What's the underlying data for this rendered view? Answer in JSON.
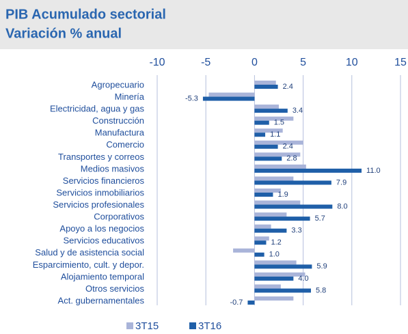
{
  "chart_data": {
    "type": "bar",
    "orientation": "horizontal",
    "title": "PIB Acumulado sectorial",
    "subtitle": "Variación % anual",
    "categories": [
      "Agropecuario",
      "Minería",
      "Electricidad, agua y gas",
      "Construcción",
      "Manufactura",
      "Comercio",
      "Transportes y correos",
      "Medios masivos",
      "Servicios financieros",
      "Servicios inmobiliarios",
      "Servicios profesionales",
      "Corporativos",
      "Apoyo a los negocios",
      "Servicios educativos",
      "Salud y de asistencia social",
      "Esparcimiento, cult. y depor.",
      "Alojamiento temporal",
      "Otros servicios",
      "Act. gubernamentales"
    ],
    "series": [
      {
        "name": "3T15",
        "color": "#a9b4d9",
        "values": [
          2.2,
          -4.7,
          2.5,
          4.0,
          2.9,
          5.0,
          4.7,
          5.3,
          4.0,
          2.7,
          4.7,
          3.3,
          1.7,
          1.5,
          -2.2,
          4.3,
          5.2,
          2.7,
          4.0
        ]
      },
      {
        "name": "3T16",
        "color": "#1f5fa8",
        "values": [
          2.4,
          -5.3,
          3.4,
          1.5,
          1.1,
          2.4,
          2.8,
          11,
          7.9,
          1.9,
          8,
          5.7,
          3.3,
          1.2,
          1,
          5.9,
          4,
          5.8,
          -0.7
        ],
        "value_labels": [
          "2.4",
          "-5.3",
          "3.4",
          "1.5",
          "1.1",
          "2.4",
          "2.8",
          "11.0",
          "7.9",
          "1.9",
          "8.0",
          "5.7",
          "3.3",
          "1.2",
          "1.0",
          "5.9",
          "4.0",
          "5.8",
          "-0.7"
        ]
      }
    ],
    "xlim": [
      -10,
      15
    ],
    "xticks": [
      -10,
      -5,
      0,
      5,
      10,
      15
    ],
    "grid": true,
    "legend": "bottom"
  }
}
